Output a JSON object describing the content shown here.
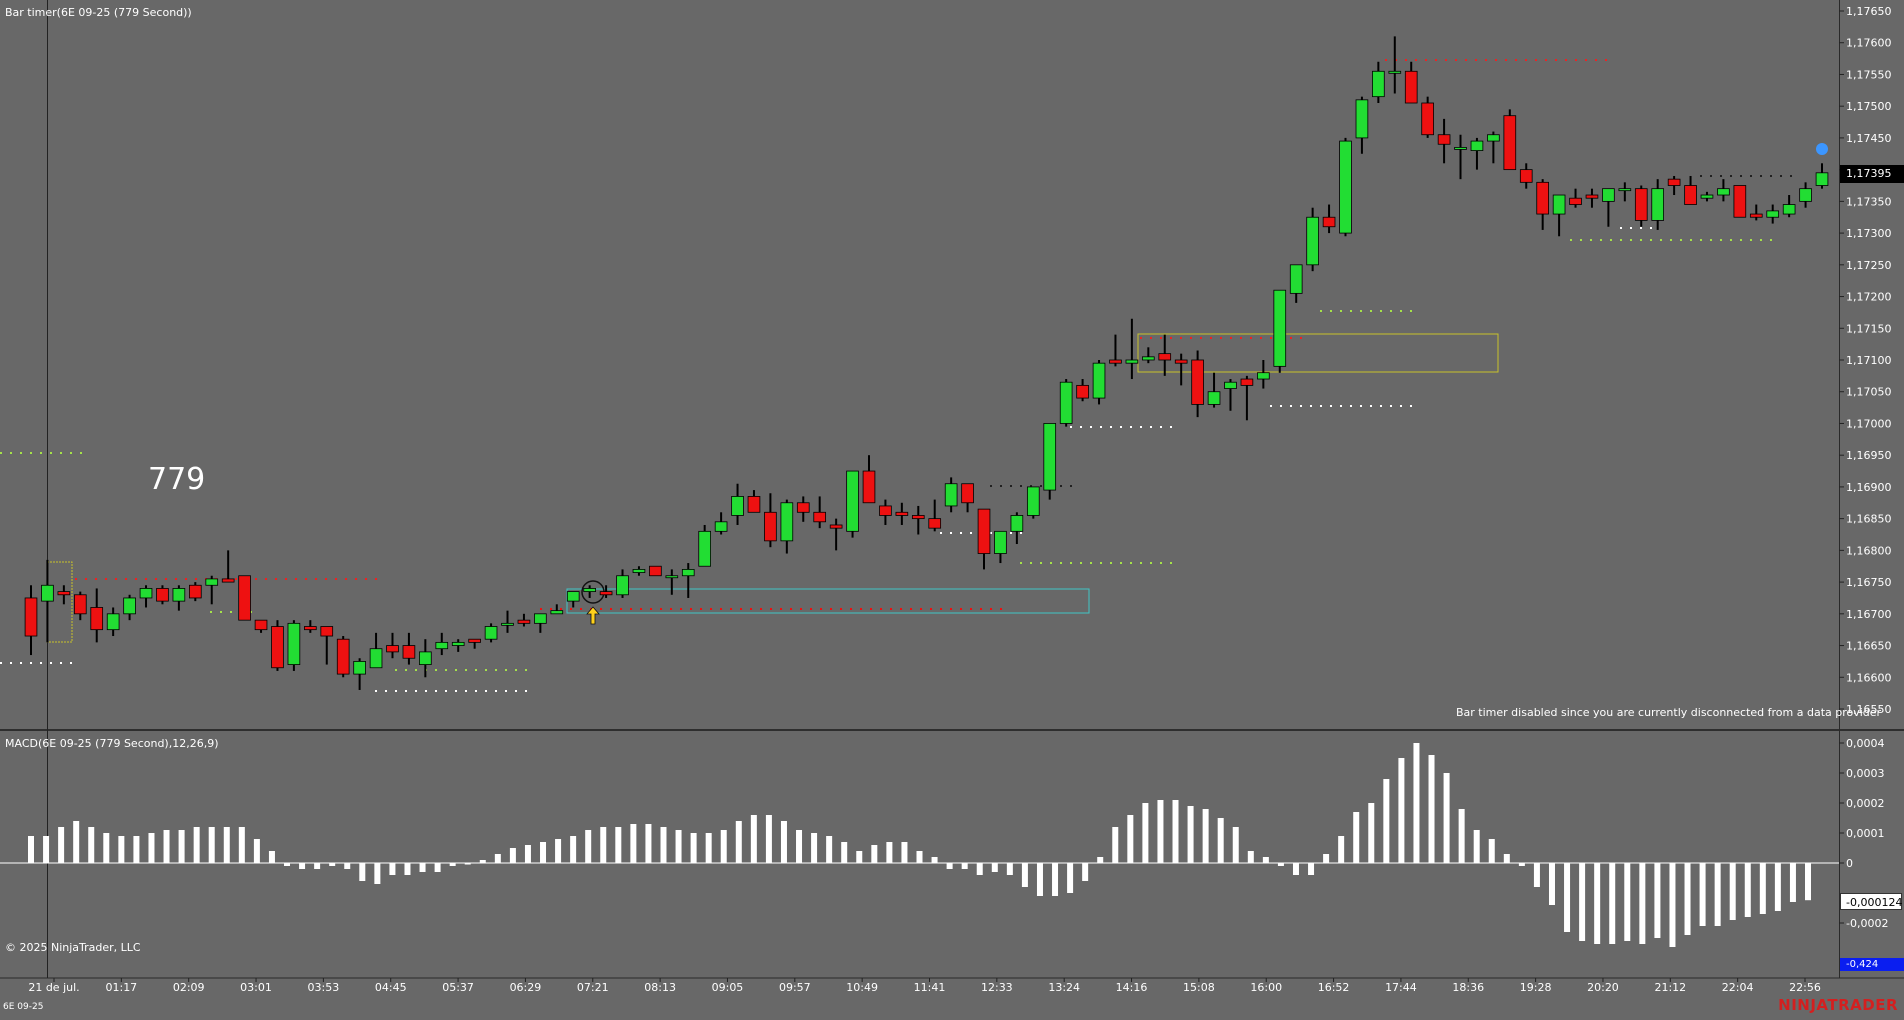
{
  "header": {
    "title": "Bar timer(6E 09-25 (779 Second))"
  },
  "overlay": {
    "bar_count_text": "779",
    "disconnected_msg": "Bar timer disabled since you are currently disconnected from a data provider"
  },
  "macd_panel": {
    "title": "MACD(6E 09-25 (779 Second),12,26,9)"
  },
  "footer": {
    "copyright": "© 2025 NinjaTrader, LLC",
    "instrument": "6E 09-25",
    "brand": "NINJATRADER"
  },
  "badges": {
    "last_price": "1,17395",
    "macd_value": "-0,000124",
    "macd_low": "-0,424"
  },
  "colors": {
    "background": "#686868",
    "up_candle": "#22dd33",
    "down_candle": "#ee1111",
    "macd_bar": "#ffffff",
    "brand": "#d41f1f"
  },
  "chart_data": [
    {
      "type": "candlestick",
      "title": "Bar timer(6E 09-25 (779 Second))",
      "y_ticks": [
        "1,17650",
        "1,17600",
        "1,17550",
        "1,17500",
        "1,17450",
        "1,17400",
        "1,17350",
        "1,17300",
        "1,17250",
        "1,17200",
        "1,17150",
        "1,17100",
        "1,17050",
        "1,17000",
        "1,16950",
        "1,16900",
        "1,16850",
        "1,16800",
        "1,16750",
        "1,16700",
        "1,16650",
        "1,16600",
        "1,16550"
      ],
      "ylim": [
        1.1653,
        1.1766
      ],
      "x_ticks": [
        "21 de jul.",
        "01:17",
        "02:09",
        "03:01",
        "03:53",
        "04:45",
        "05:37",
        "06:29",
        "07:21",
        "08:13",
        "09:05",
        "09:57",
        "10:49",
        "11:41",
        "12:33",
        "13:24",
        "14:16",
        "15:08",
        "16:00",
        "16:52",
        "17:44",
        "18:36",
        "19:28",
        "20:20",
        "21:12",
        "22:04",
        "22:56"
      ],
      "candles": [
        [
          1.16725,
          1.16745,
          1.16635,
          1.16665
        ],
        [
          1.1672,
          1.16785,
          1.16655,
          1.16745
        ],
        [
          1.16735,
          1.16745,
          1.16715,
          1.1673
        ],
        [
          1.1673,
          1.16735,
          1.1669,
          1.167
        ],
        [
          1.1671,
          1.1674,
          1.16655,
          1.16675
        ],
        [
          1.16675,
          1.1671,
          1.16665,
          1.167
        ],
        [
          1.167,
          1.1673,
          1.1669,
          1.16725
        ],
        [
          1.16725,
          1.16745,
          1.1671,
          1.1674
        ],
        [
          1.1674,
          1.16745,
          1.16715,
          1.1672
        ],
        [
          1.1672,
          1.16745,
          1.16705,
          1.1674
        ],
        [
          1.16745,
          1.1675,
          1.1672,
          1.16725
        ],
        [
          1.16745,
          1.1676,
          1.16715,
          1.16755
        ],
        [
          1.16755,
          1.168,
          1.1675,
          1.1675
        ],
        [
          1.1676,
          1.1676,
          1.1669,
          1.1669
        ],
        [
          1.1669,
          1.1669,
          1.1667,
          1.16675
        ],
        [
          1.1668,
          1.1669,
          1.1661,
          1.16615
        ],
        [
          1.1662,
          1.1669,
          1.1661,
          1.16685
        ],
        [
          1.1668,
          1.1669,
          1.1667,
          1.16675
        ],
        [
          1.1668,
          1.1668,
          1.1662,
          1.16665
        ],
        [
          1.1666,
          1.16665,
          1.166,
          1.16605
        ],
        [
          1.16605,
          1.1663,
          1.1658,
          1.16625
        ],
        [
          1.16615,
          1.1667,
          1.16615,
          1.16645
        ],
        [
          1.1665,
          1.1667,
          1.1663,
          1.1664
        ],
        [
          1.1665,
          1.1667,
          1.1662,
          1.1663
        ],
        [
          1.1662,
          1.1666,
          1.166,
          1.1664
        ],
        [
          1.16645,
          1.1667,
          1.16635,
          1.16655
        ],
        [
          1.1665,
          1.1666,
          1.1664,
          1.16655
        ],
        [
          1.1666,
          1.1666,
          1.16645,
          1.16655
        ],
        [
          1.1666,
          1.16685,
          1.16655,
          1.1668
        ],
        [
          1.16685,
          1.16705,
          1.1667,
          1.16685
        ],
        [
          1.1669,
          1.167,
          1.1668,
          1.16685
        ],
        [
          1.16685,
          1.167,
          1.1667,
          1.167
        ],
        [
          1.167,
          1.16715,
          1.167,
          1.16705
        ],
        [
          1.1672,
          1.16735,
          1.1671,
          1.16735
        ],
        [
          1.16735,
          1.16745,
          1.16725,
          1.1674
        ],
        [
          1.16735,
          1.16745,
          1.16725,
          1.1673
        ],
        [
          1.1673,
          1.1677,
          1.16725,
          1.1676
        ],
        [
          1.16765,
          1.16775,
          1.1676,
          1.1677
        ],
        [
          1.16775,
          1.16775,
          1.1676,
          1.1676
        ],
        [
          1.1676,
          1.1677,
          1.1673,
          1.1676
        ],
        [
          1.1676,
          1.1678,
          1.16725,
          1.1677
        ],
        [
          1.16775,
          1.1684,
          1.16775,
          1.1683
        ],
        [
          1.1683,
          1.1686,
          1.16825,
          1.16845
        ],
        [
          1.16855,
          1.16905,
          1.1684,
          1.16885
        ],
        [
          1.16885,
          1.16895,
          1.1686,
          1.1686
        ],
        [
          1.1686,
          1.1689,
          1.16805,
          1.16815
        ],
        [
          1.16815,
          1.1688,
          1.16795,
          1.16875
        ],
        [
          1.16875,
          1.16885,
          1.16845,
          1.1686
        ],
        [
          1.1686,
          1.16885,
          1.16835,
          1.16845
        ],
        [
          1.1684,
          1.1685,
          1.168,
          1.16835
        ],
        [
          1.1683,
          1.16925,
          1.1682,
          1.16925
        ],
        [
          1.16925,
          1.1695,
          1.16875,
          1.16875
        ],
        [
          1.1687,
          1.1688,
          1.1684,
          1.16855
        ],
        [
          1.1686,
          1.16875,
          1.1684,
          1.16855
        ],
        [
          1.16855,
          1.1687,
          1.16825,
          1.1685
        ],
        [
          1.1685,
          1.1688,
          1.1683,
          1.16835
        ],
        [
          1.1687,
          1.16915,
          1.1686,
          1.16905
        ],
        [
          1.16905,
          1.16905,
          1.1686,
          1.16875
        ],
        [
          1.16865,
          1.16865,
          1.1677,
          1.16795
        ],
        [
          1.16795,
          1.1683,
          1.1678,
          1.1683
        ],
        [
          1.1683,
          1.1686,
          1.1681,
          1.16855
        ],
        [
          1.16855,
          1.169,
          1.1685,
          1.169
        ],
        [
          1.16895,
          1.17,
          1.1688,
          1.17
        ],
        [
          1.17,
          1.1707,
          1.16995,
          1.17065
        ],
        [
          1.1706,
          1.1707,
          1.17035,
          1.1704
        ],
        [
          1.1704,
          1.171,
          1.1703,
          1.17095
        ],
        [
          1.171,
          1.1714,
          1.1709,
          1.17095
        ],
        [
          1.17095,
          1.17165,
          1.1707,
          1.171
        ],
        [
          1.171,
          1.1712,
          1.17095,
          1.17105
        ],
        [
          1.1711,
          1.1714,
          1.17075,
          1.171
        ],
        [
          1.171,
          1.1711,
          1.1706,
          1.17095
        ],
        [
          1.171,
          1.17115,
          1.1701,
          1.1703
        ],
        [
          1.1703,
          1.1708,
          1.17025,
          1.1705
        ],
        [
          1.17055,
          1.1707,
          1.1702,
          1.17065
        ],
        [
          1.1707,
          1.17075,
          1.17005,
          1.1706
        ],
        [
          1.1707,
          1.171,
          1.17055,
          1.1708
        ],
        [
          1.1709,
          1.1721,
          1.1708,
          1.1721
        ],
        [
          1.17205,
          1.1725,
          1.1719,
          1.1725
        ],
        [
          1.1725,
          1.1734,
          1.1724,
          1.17325
        ],
        [
          1.17325,
          1.17345,
          1.173,
          1.1731
        ],
        [
          1.173,
          1.1745,
          1.17295,
          1.17445
        ],
        [
          1.1745,
          1.17515,
          1.17425,
          1.1751
        ],
        [
          1.17515,
          1.1757,
          1.17505,
          1.17555
        ],
        [
          1.17555,
          1.1761,
          1.1752,
          1.17555
        ],
        [
          1.17555,
          1.1757,
          1.17505,
          1.17505
        ],
        [
          1.17505,
          1.17515,
          1.1745,
          1.17455
        ],
        [
          1.17455,
          1.1748,
          1.1741,
          1.1744
        ],
        [
          1.17435,
          1.17455,
          1.17385,
          1.17435
        ],
        [
          1.1743,
          1.1745,
          1.174,
          1.17445
        ],
        [
          1.17445,
          1.1746,
          1.1741,
          1.17455
        ],
        [
          1.17485,
          1.17495,
          1.174,
          1.174
        ],
        [
          1.174,
          1.1741,
          1.1737,
          1.1738
        ],
        [
          1.1738,
          1.17385,
          1.17305,
          1.1733
        ],
        [
          1.1733,
          1.1736,
          1.17295,
          1.1736
        ],
        [
          1.17355,
          1.1737,
          1.1734,
          1.17345
        ],
        [
          1.1736,
          1.1737,
          1.1734,
          1.17355
        ],
        [
          1.1735,
          1.1737,
          1.1731,
          1.1737
        ],
        [
          1.1737,
          1.1738,
          1.1735,
          1.1737
        ],
        [
          1.1737,
          1.17375,
          1.1731,
          1.1732
        ],
        [
          1.1732,
          1.17385,
          1.17305,
          1.1737
        ],
        [
          1.17385,
          1.1739,
          1.1736,
          1.17375
        ],
        [
          1.17375,
          1.1739,
          1.17345,
          1.17345
        ],
        [
          1.17355,
          1.17365,
          1.1735,
          1.1736
        ],
        [
          1.1736,
          1.17385,
          1.1735,
          1.1737
        ],
        [
          1.17375,
          1.17375,
          1.17325,
          1.17325
        ],
        [
          1.1733,
          1.17345,
          1.1732,
          1.17325
        ],
        [
          1.17325,
          1.17345,
          1.17315,
          1.17335
        ],
        [
          1.1733,
          1.1736,
          1.17325,
          1.17345
        ],
        [
          1.1735,
          1.1738,
          1.1734,
          1.1737
        ],
        [
          1.17375,
          1.1741,
          1.1737,
          1.17395
        ]
      ]
    },
    {
      "type": "bar",
      "title": "MACD(6E 09-25 (779 Second),12,26,9)",
      "y_ticks": [
        "0,0004",
        "0,0003",
        "0,0002",
        "0,0001",
        "0",
        "-0,0002"
      ],
      "ylim": [
        -0.00034,
        0.00043
      ],
      "values": [
        9e-05,
        9e-05,
        0.00012,
        0.00014,
        0.00012,
        0.0001,
        9e-05,
        9e-05,
        0.0001,
        0.00011,
        0.00011,
        0.00012,
        0.00012,
        0.00012,
        0.00012,
        8e-05,
        4e-05,
        -1e-05,
        -2e-05,
        -2e-05,
        -1e-05,
        -2e-05,
        -6e-05,
        -7e-05,
        -4e-05,
        -4e-05,
        -3e-05,
        -3e-05,
        -1e-05,
        -5e-06,
        1e-05,
        3e-05,
        5e-05,
        6e-05,
        7e-05,
        8e-05,
        9e-05,
        0.00011,
        0.00012,
        0.00012,
        0.00013,
        0.00013,
        0.00012,
        0.00011,
        0.0001,
        0.0001,
        0.00011,
        0.00014,
        0.00016,
        0.00016,
        0.00014,
        0.00011,
        0.0001,
        9e-05,
        7e-05,
        4e-05,
        6e-05,
        7e-05,
        7e-05,
        4e-05,
        2e-05,
        -2e-05,
        -2e-05,
        -4e-05,
        -3e-05,
        -4e-05,
        -8e-05,
        -0.00011,
        -0.00011,
        -0.0001,
        -6e-05,
        2e-05,
        0.00012,
        0.00016,
        0.0002,
        0.00021,
        0.00021,
        0.00019,
        0.00018,
        0.00015,
        0.00012,
        4e-05,
        2e-05,
        -1e-05,
        -4e-05,
        -4e-05,
        3e-05,
        9e-05,
        0.00017,
        0.0002,
        0.00028,
        0.00035,
        0.0004,
        0.00036,
        0.0003,
        0.00018,
        0.00011,
        8e-05,
        3e-05,
        -1e-05,
        -8e-05,
        -0.00014,
        -0.00023,
        -0.00026,
        -0.00027,
        -0.00027,
        -0.00026,
        -0.00027,
        -0.00025,
        -0.00028,
        -0.00024,
        -0.00021,
        -0.00021,
        -0.00019,
        -0.00018,
        -0.00017,
        -0.00016,
        -0.00013,
        -0.000124
      ]
    }
  ]
}
